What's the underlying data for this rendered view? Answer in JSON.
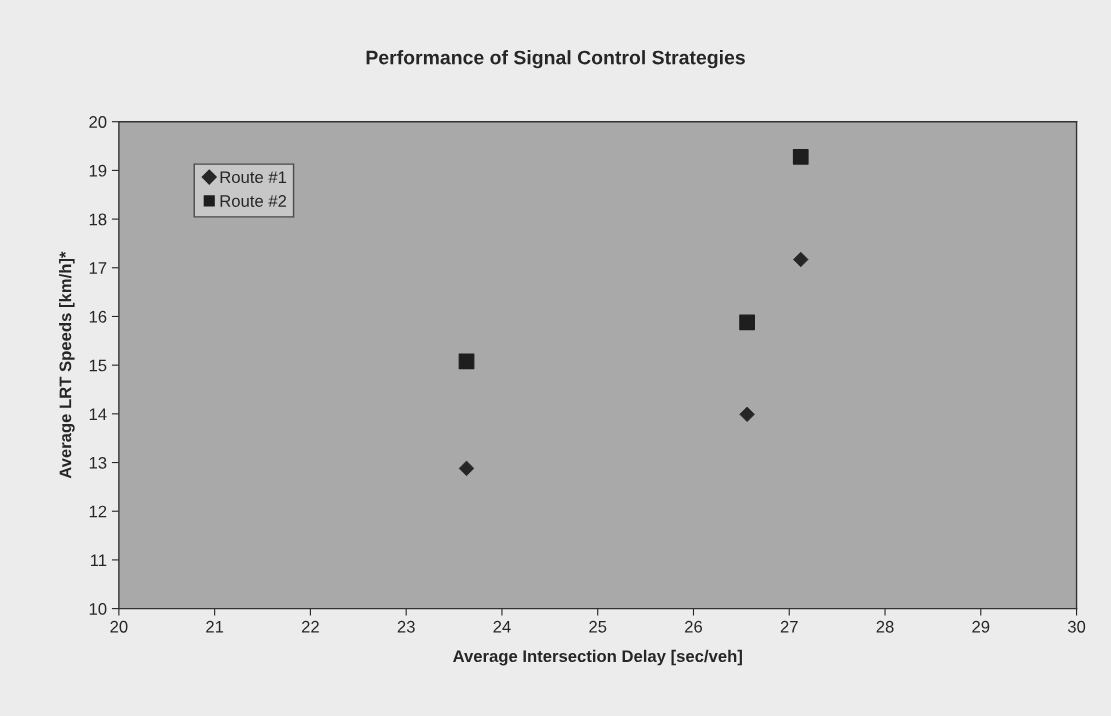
{
  "chart_data": {
    "type": "scatter",
    "title": "Performance of Signal Control Strategies",
    "xlabel": "Average Intersection Delay [sec/veh]",
    "ylabel": "Average LRT Speeds [km/h]*",
    "x": [
      23.63,
      26.56,
      27.12
    ],
    "series": [
      {
        "name": "Route #1",
        "color": "#262626",
        "marker": "diamond",
        "values": [
          12.88,
          13.99,
          17.17
        ]
      },
      {
        "name": "Route #2",
        "color": "#1e1e1e",
        "marker": "square",
        "values": [
          15.08,
          15.88,
          19.28
        ]
      }
    ],
    "xlim": [
      20,
      30
    ],
    "xticks": [
      20,
      21,
      22,
      23,
      24,
      25,
      26,
      27,
      28,
      29,
      30
    ],
    "ylim": [
      10,
      20
    ],
    "yticks": [
      10,
      11,
      12,
      13,
      14,
      15,
      16,
      17,
      18,
      19,
      20
    ],
    "grid": false,
    "legend": "top left"
  }
}
